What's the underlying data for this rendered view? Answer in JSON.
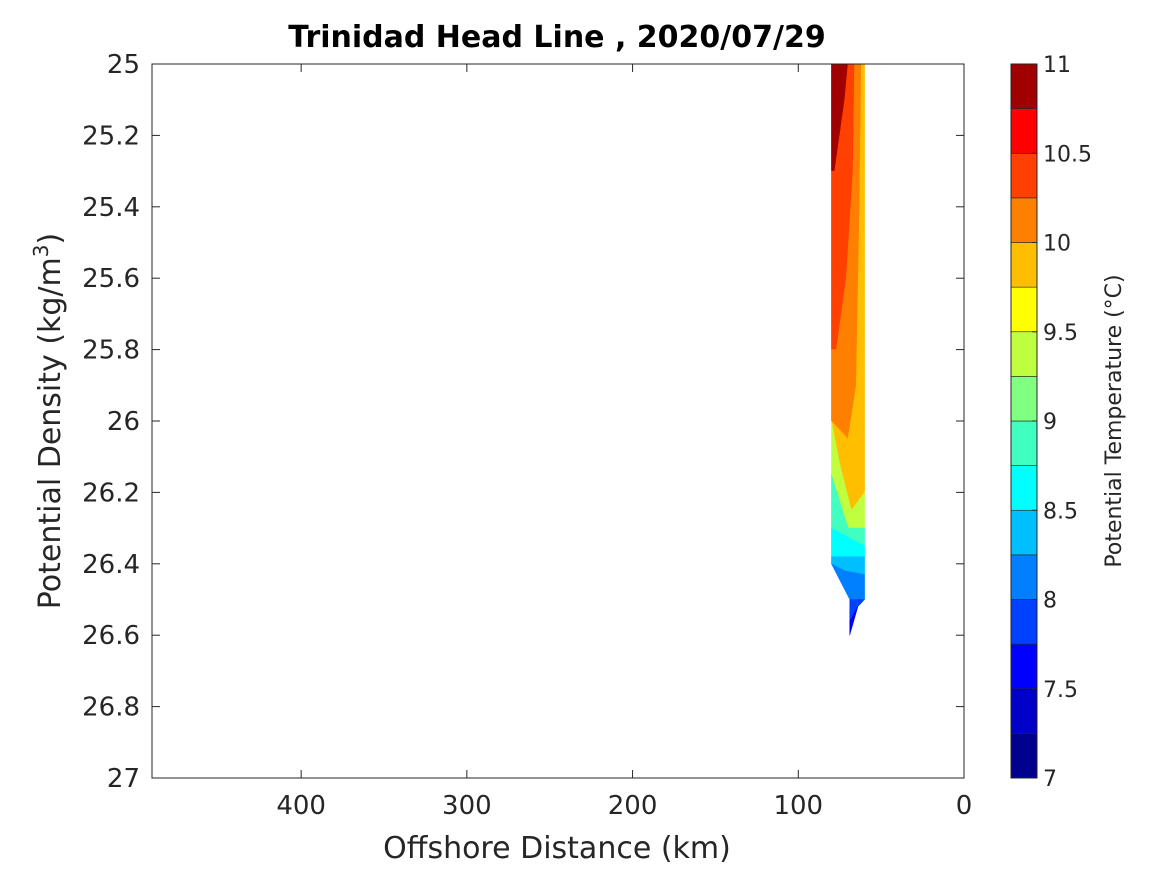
{
  "chart_data": {
    "type": "heatmap",
    "title": "Trinidad Head Line , 2020/07/29",
    "xlabel": "Offshore Distance (km)",
    "ylabel": "Potential Density (kg/m",
    "ylabel_sup": "3",
    "ylabel_close": ")",
    "colorbar_label": "Potential Temperature (°C)",
    "xlim": [
      490,
      0
    ],
    "xreversed": true,
    "ylim": [
      27,
      25
    ],
    "yreversed": true,
    "xticks": [
      400,
      300,
      200,
      100,
      0
    ],
    "xtick_labels": [
      "400",
      "300",
      "200",
      "100",
      "0"
    ],
    "yticks": [
      25,
      25.2,
      25.4,
      25.6,
      25.8,
      26,
      26.2,
      26.4,
      26.6,
      26.8,
      27
    ],
    "ytick_labels": [
      "25",
      "25.2",
      "25.4",
      "25.6",
      "25.8",
      "26",
      "26.2",
      "26.4",
      "26.6",
      "26.8",
      "27"
    ],
    "clim": [
      7,
      11
    ],
    "colorbar_step": 0.25,
    "colorbar_ticks": [
      7,
      7.5,
      8,
      8.5,
      9,
      9.5,
      10,
      10.5,
      11
    ],
    "colorbar_tick_labels": [
      "7",
      "7.5",
      "8",
      "8.5",
      "9",
      "9.5",
      "10",
      "10.5",
      "11"
    ],
    "colormap": [
      "#00008f",
      "#0000c8",
      "#0000ff",
      "#0040ff",
      "#0080ff",
      "#00bfff",
      "#00ffff",
      "#40ffbf",
      "#80ff80",
      "#bfff40",
      "#ffff00",
      "#ffbf00",
      "#ff8000",
      "#ff4000",
      "#ff0000",
      "#a00000"
    ],
    "grid": false,
    "data_region": {
      "x_range_km": [
        60,
        80
      ],
      "y_range": [
        25,
        26.6
      ],
      "outline_km": [
        [
          80,
          25
        ],
        [
          60,
          25
        ],
        [
          60,
          26.5
        ],
        [
          69,
          26.6
        ],
        [
          69,
          26.5
        ],
        [
          80,
          26.4
        ]
      ]
    },
    "contour_bands": [
      {
        "level": 10.75,
        "polygon": [
          [
            80,
            25
          ],
          [
            70,
            25
          ],
          [
            72,
            25.1
          ],
          [
            78,
            25.3
          ],
          [
            80,
            25.3
          ]
        ]
      },
      {
        "level": 10.25,
        "polygon": [
          [
            80,
            25.3
          ],
          [
            78,
            25.3
          ],
          [
            72,
            25.1
          ],
          [
            70,
            25
          ],
          [
            66,
            25
          ],
          [
            67,
            25.3
          ],
          [
            71,
            25.6
          ],
          [
            77,
            25.8
          ],
          [
            80,
            25.8
          ]
        ]
      },
      {
        "level": 10.0,
        "polygon": [
          [
            66,
            25
          ],
          [
            62,
            25
          ],
          [
            63,
            25.4
          ],
          [
            65,
            25.9
          ],
          [
            70,
            26.05
          ],
          [
            80,
            26
          ],
          [
            80,
            25.8
          ],
          [
            77,
            25.8
          ],
          [
            71,
            25.6
          ],
          [
            67,
            25.3
          ]
        ]
      },
      {
        "level": 9.75,
        "polygon": [
          [
            62,
            25
          ],
          [
            60,
            25
          ],
          [
            60,
            26.2
          ],
          [
            68,
            26.25
          ],
          [
            75,
            26.12
          ],
          [
            80,
            26
          ],
          [
            70,
            26.05
          ],
          [
            65,
            25.9
          ],
          [
            63,
            25.4
          ]
        ]
      },
      {
        "level": 9.25,
        "polygon": [
          [
            80,
            26
          ],
          [
            75,
            26.12
          ],
          [
            68,
            26.25
          ],
          [
            60,
            26.2
          ],
          [
            60,
            26.3
          ],
          [
            70,
            26.3
          ],
          [
            80,
            26.15
          ]
        ]
      },
      {
        "level": 8.75,
        "polygon": [
          [
            80,
            26.15
          ],
          [
            70,
            26.3
          ],
          [
            60,
            26.3
          ],
          [
            60,
            26.35
          ],
          [
            80,
            26.3
          ]
        ]
      },
      {
        "level": 8.5,
        "polygon": [
          [
            80,
            26.3
          ],
          [
            60,
            26.35
          ],
          [
            60,
            26.38
          ],
          [
            80,
            26.38
          ]
        ]
      },
      {
        "level": 8.25,
        "polygon": [
          [
            80,
            26.38
          ],
          [
            60,
            26.38
          ],
          [
            60,
            26.43
          ],
          [
            72,
            26.42
          ],
          [
            80,
            26.4
          ]
        ]
      },
      {
        "level": 8.0,
        "polygon": [
          [
            80,
            26.4
          ],
          [
            72,
            26.42
          ],
          [
            60,
            26.43
          ],
          [
            60,
            26.5
          ],
          [
            69,
            26.5
          ]
        ]
      },
      {
        "level": 7.75,
        "polygon": [
          [
            69,
            26.5
          ],
          [
            60,
            26.5
          ],
          [
            64,
            26.52
          ],
          [
            69,
            26.56
          ]
        ]
      },
      {
        "level": 7.5,
        "polygon": [
          [
            69,
            26.56
          ],
          [
            64,
            26.52
          ],
          [
            69,
            26.6
          ]
        ]
      }
    ]
  }
}
